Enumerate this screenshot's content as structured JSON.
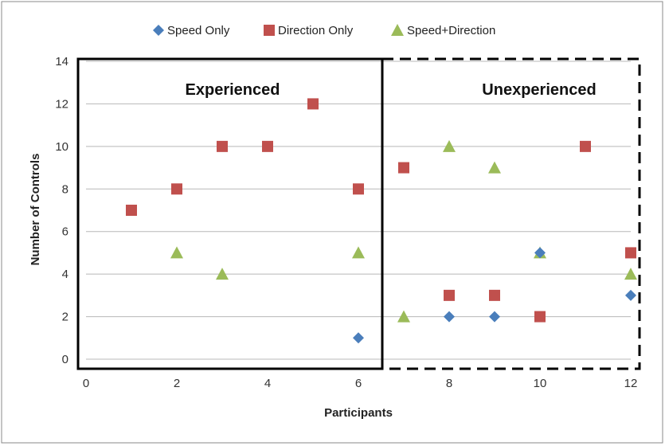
{
  "chart_data": {
    "type": "scatter",
    "xlabel": "Participants",
    "ylabel": "Number of Controls",
    "xlim": [
      0,
      12
    ],
    "ylim": [
      0,
      14
    ],
    "x_ticks": [
      0,
      2,
      4,
      6,
      8,
      10,
      12
    ],
    "y_ticks": [
      0,
      2,
      4,
      6,
      8,
      10,
      12,
      14
    ],
    "grid": "horizontal",
    "legend_position": "top",
    "series": [
      {
        "name": "Speed Only",
        "marker": "diamond",
        "color": "#4a7ebb",
        "points": [
          [
            6,
            1
          ],
          [
            8,
            2
          ],
          [
            9,
            2
          ],
          [
            10,
            5
          ],
          [
            12,
            3
          ]
        ]
      },
      {
        "name": "Direction Only",
        "marker": "square",
        "color": "#c0504d",
        "points": [
          [
            1,
            7
          ],
          [
            2,
            8
          ],
          [
            3,
            10
          ],
          [
            4,
            10
          ],
          [
            5,
            12
          ],
          [
            6,
            8
          ],
          [
            7,
            9
          ],
          [
            8,
            3
          ],
          [
            9,
            3
          ],
          [
            10,
            2
          ],
          [
            11,
            10
          ],
          [
            12,
            5
          ]
        ]
      },
      {
        "name": "Speed+Direction",
        "marker": "triangle",
        "color": "#9bbb59",
        "points": [
          [
            2,
            5
          ],
          [
            3,
            4
          ],
          [
            6,
            5
          ],
          [
            7,
            2
          ],
          [
            8,
            10
          ],
          [
            9,
            9
          ],
          [
            10,
            5
          ],
          [
            12,
            4
          ]
        ]
      }
    ],
    "annotations": [
      {
        "text": "Experienced",
        "border": "solid",
        "x_range": [
          0,
          6.5
        ]
      },
      {
        "text": "Unexperienced",
        "border": "dashed",
        "x_range": [
          6.5,
          12
        ]
      }
    ]
  }
}
